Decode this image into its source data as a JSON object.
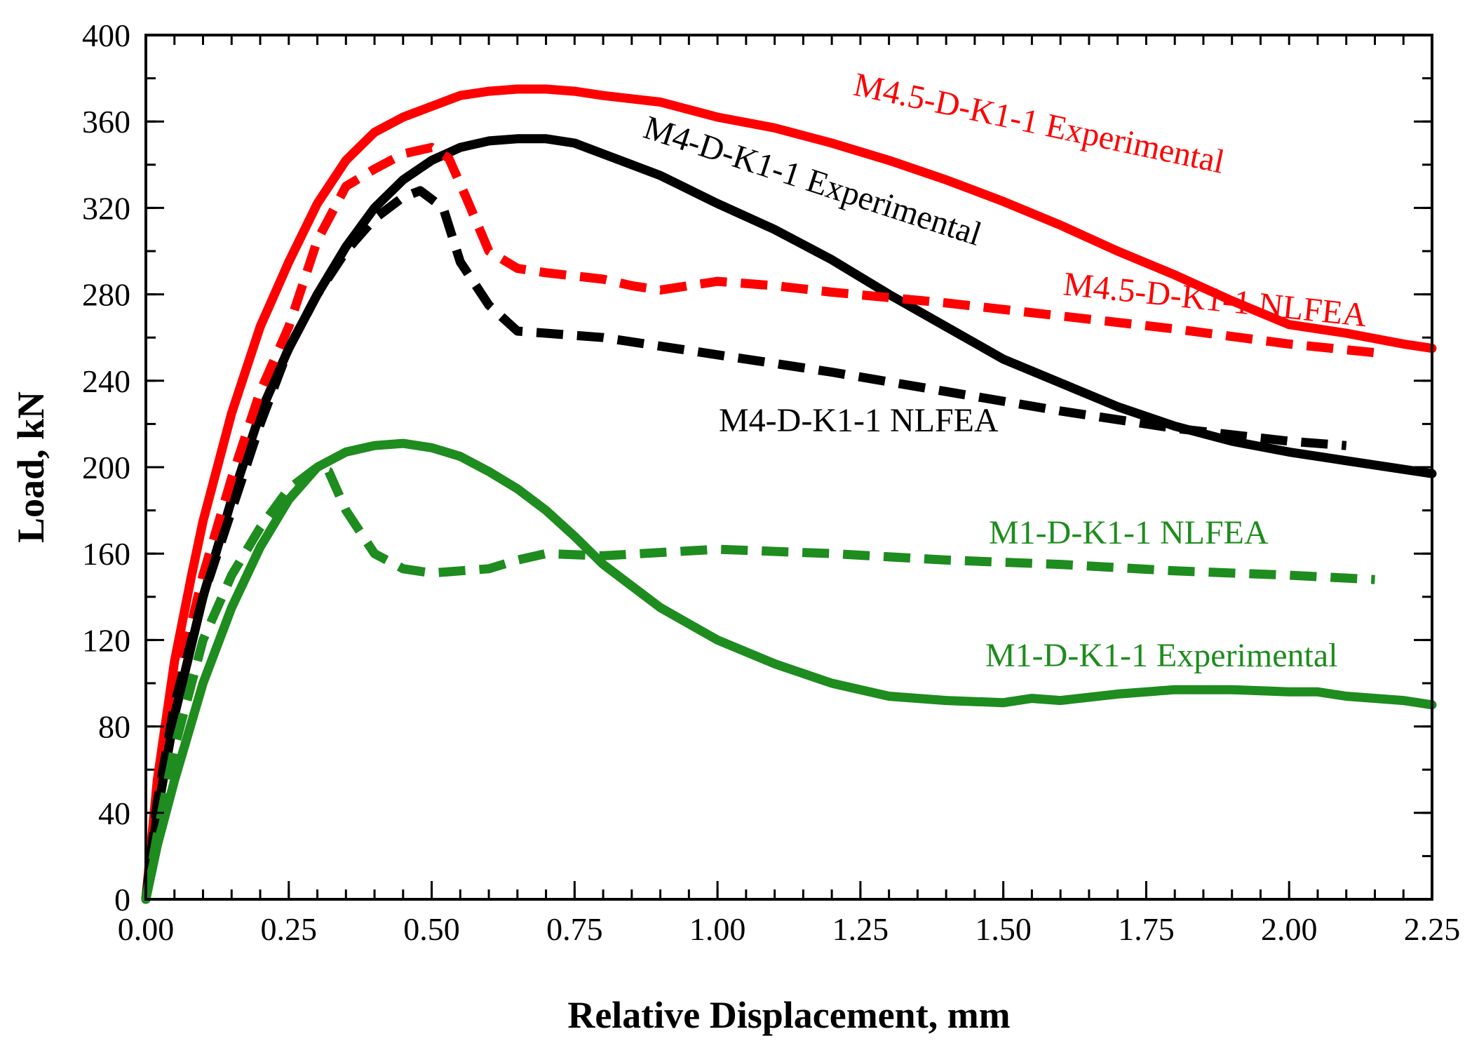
{
  "chart_data": {
    "type": "line",
    "title": "",
    "xlabel": "Relative Displacement, mm",
    "ylabel": "Load, kN",
    "xlim": [
      0,
      2.25
    ],
    "ylim": [
      0,
      400
    ],
    "x_ticks": [
      0,
      0.25,
      0.5,
      0.75,
      1.0,
      1.25,
      1.5,
      1.75,
      2.0,
      2.25
    ],
    "x_tick_labels": [
      "0.00",
      "0.25",
      "0.50",
      "0.75",
      "1.00",
      "1.25",
      "1.50",
      "1.75",
      "2.00",
      "2.25"
    ],
    "y_ticks": [
      0,
      40,
      80,
      120,
      160,
      200,
      240,
      280,
      320,
      360,
      400
    ],
    "y_tick_labels": [
      "0",
      "40",
      "80",
      "120",
      "160",
      "200",
      "240",
      "280",
      "320",
      "360",
      "400"
    ],
    "x_minor_step": 0.05,
    "y_minor_step": 20,
    "grid": false,
    "series": [
      {
        "name": "M4.5-D-K1-1 Experimental",
        "style": "solid",
        "color": "#ff0000",
        "label_angle": 12,
        "x": [
          0,
          0.02,
          0.05,
          0.08,
          0.1,
          0.15,
          0.2,
          0.25,
          0.3,
          0.35,
          0.4,
          0.45,
          0.5,
          0.55,
          0.6,
          0.65,
          0.7,
          0.75,
          0.8,
          0.9,
          1.0,
          1.1,
          1.2,
          1.3,
          1.4,
          1.5,
          1.6,
          1.7,
          1.8,
          1.9,
          2.0,
          2.1,
          2.2,
          2.25
        ],
        "y": [
          0,
          55,
          110,
          150,
          175,
          225,
          265,
          295,
          322,
          342,
          355,
          362,
          367,
          372,
          374,
          375,
          375,
          374,
          372,
          369,
          362,
          357,
          350,
          342,
          333,
          323,
          312,
          300,
          289,
          277,
          266,
          262,
          257,
          255
        ]
      },
      {
        "name": "M4-D-K1-1 Experimental",
        "style": "solid",
        "color": "#000000",
        "label_angle": 18,
        "x": [
          0,
          0.02,
          0.05,
          0.1,
          0.15,
          0.2,
          0.25,
          0.3,
          0.35,
          0.4,
          0.45,
          0.5,
          0.55,
          0.6,
          0.65,
          0.7,
          0.75,
          0.8,
          0.9,
          1.0,
          1.1,
          1.2,
          1.3,
          1.4,
          1.5,
          1.6,
          1.7,
          1.8,
          1.9,
          2.0,
          2.1,
          2.2,
          2.25
        ],
        "y": [
          0,
          40,
          85,
          140,
          185,
          225,
          255,
          280,
          302,
          320,
          333,
          342,
          348,
          351,
          352,
          352,
          350,
          345,
          335,
          322,
          310,
          296,
          280,
          265,
          250,
          239,
          228,
          219,
          212,
          207,
          203,
          199,
          197
        ]
      },
      {
        "name": "M4.5-D-K1-1 NLFEA",
        "style": "dashed",
        "color": "#ff0000",
        "label_angle": 6,
        "x": [
          0,
          0.02,
          0.05,
          0.1,
          0.15,
          0.2,
          0.25,
          0.3,
          0.35,
          0.4,
          0.45,
          0.5,
          0.53,
          0.56,
          0.6,
          0.65,
          0.7,
          0.8,
          0.85,
          0.9,
          1.0,
          1.1,
          1.2,
          1.4,
          1.6,
          1.8,
          2.0,
          2.15
        ],
        "y": [
          0,
          45,
          95,
          150,
          195,
          235,
          265,
          305,
          330,
          338,
          345,
          348,
          343,
          325,
          300,
          292,
          290,
          287,
          284,
          282,
          286,
          284,
          281,
          276,
          270,
          264,
          257,
          253
        ]
      },
      {
        "name": "M4-D-K1-1 NLFEA",
        "style": "dashed",
        "color": "#000000",
        "label_angle": 0,
        "x": [
          0,
          0.02,
          0.05,
          0.1,
          0.15,
          0.2,
          0.25,
          0.3,
          0.35,
          0.4,
          0.45,
          0.48,
          0.52,
          0.55,
          0.6,
          0.65,
          0.7,
          0.8,
          1.0,
          1.2,
          1.4,
          1.6,
          1.8,
          2.0,
          2.1
        ],
        "y": [
          0,
          45,
          90,
          140,
          180,
          220,
          255,
          280,
          300,
          315,
          325,
          328,
          320,
          295,
          275,
          263,
          262,
          260,
          252,
          244,
          235,
          226,
          218,
          212,
          210
        ]
      },
      {
        "name": "M1-D-K1-1 NLFEA",
        "style": "dashed",
        "color": "#1e8c1e",
        "label_angle": 0,
        "x": [
          0,
          0.02,
          0.05,
          0.1,
          0.15,
          0.2,
          0.25,
          0.3,
          0.32,
          0.35,
          0.4,
          0.45,
          0.5,
          0.55,
          0.6,
          0.65,
          0.7,
          0.8,
          1.0,
          1.2,
          1.4,
          1.6,
          1.8,
          2.0,
          2.15
        ],
        "y": [
          0,
          30,
          70,
          120,
          150,
          172,
          190,
          200,
          198,
          180,
          160,
          153,
          151,
          152,
          153,
          157,
          160,
          159,
          162,
          160,
          157,
          155,
          152,
          150,
          148
        ]
      },
      {
        "name": "M1-D-K1-1 Experimental",
        "style": "solid",
        "color": "#1e8c1e",
        "label_angle": 0,
        "x": [
          0,
          0.02,
          0.05,
          0.1,
          0.15,
          0.2,
          0.25,
          0.3,
          0.35,
          0.4,
          0.45,
          0.5,
          0.55,
          0.6,
          0.65,
          0.7,
          0.75,
          0.8,
          0.9,
          1.0,
          1.1,
          1.2,
          1.3,
          1.4,
          1.5,
          1.55,
          1.6,
          1.7,
          1.8,
          1.9,
          2.0,
          2.05,
          2.1,
          2.2,
          2.25
        ],
        "y": [
          0,
          25,
          55,
          100,
          135,
          163,
          185,
          200,
          207,
          210,
          211,
          209,
          205,
          198,
          190,
          180,
          168,
          155,
          135,
          120,
          109,
          100,
          94,
          92,
          91,
          93,
          92,
          95,
          97,
          97,
          96,
          96,
          94,
          92,
          90
        ]
      }
    ]
  }
}
